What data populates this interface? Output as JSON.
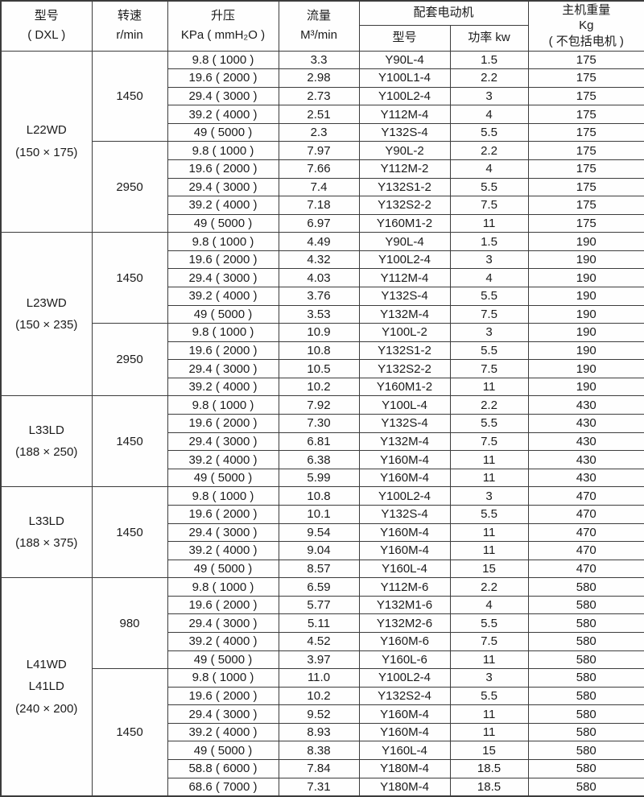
{
  "colors": {
    "border": "#3c3c3c",
    "text": "#1b1b1b",
    "table_bg": "#fefefe"
  },
  "table": {
    "headers": {
      "model_line1": "型号",
      "model_line2": "( DXL )",
      "speed_line1": "转速",
      "speed_line2": "r/min",
      "pressure_line1": "升压",
      "pressure_line2": "KPa ( mmH₂O )",
      "flow_line1": "流量",
      "flow_line2": "M³/min",
      "motor_group": "配套电动机",
      "motor_model": "型号",
      "motor_power": "功率 kw",
      "weight_line1": "主机重量",
      "weight_line2": "Kg",
      "weight_line3": "( 不包括电机 )"
    },
    "column_cell_names": [
      "pressure-cell",
      "flow-cell",
      "motor-model-cell",
      "motor-power-cell",
      "weight-cell"
    ],
    "groups": [
      {
        "model_lines": [
          "L22WD",
          "(150 × 175)"
        ],
        "speed_groups": [
          {
            "speed": "1450",
            "rows": [
              [
                "9.8 ( 1000 )",
                "3.3",
                "Y90L-4",
                "1.5",
                "175"
              ],
              [
                "19.6 ( 2000 )",
                "2.98",
                "Y100L1-4",
                "2.2",
                "175"
              ],
              [
                "29.4 ( 3000 )",
                "2.73",
                "Y100L2-4",
                "3",
                "175"
              ],
              [
                "39.2 ( 4000 )",
                "2.51",
                "Y112M-4",
                "4",
                "175"
              ],
              [
                "49 ( 5000 )",
                "2.3",
                "Y132S-4",
                "5.5",
                "175"
              ]
            ]
          },
          {
            "speed": "2950",
            "rows": [
              [
                "9.8 ( 1000 )",
                "7.97",
                "Y90L-2",
                "2.2",
                "175"
              ],
              [
                "19.6 ( 2000 )",
                "7.66",
                "Y112M-2",
                "4",
                "175"
              ],
              [
                "29.4 ( 3000 )",
                "7.4",
                "Y132S1-2",
                "5.5",
                "175"
              ],
              [
                "39.2 ( 4000 )",
                "7.18",
                "Y132S2-2",
                "7.5",
                "175"
              ],
              [
                "49 ( 5000 )",
                "6.97",
                "Y160M1-2",
                "11",
                "175"
              ]
            ]
          }
        ]
      },
      {
        "model_lines": [
          "L23WD",
          "(150 × 235)"
        ],
        "speed_groups": [
          {
            "speed": "1450",
            "rows": [
              [
                "9.8 ( 1000 )",
                "4.49",
                "Y90L-4",
                "1.5",
                "190"
              ],
              [
                "19.6 ( 2000 )",
                "4.32",
                "Y100L2-4",
                "3",
                "190"
              ],
              [
                "29.4 ( 3000 )",
                "4.03",
                "Y112M-4",
                "4",
                "190"
              ],
              [
                "39.2 ( 4000 )",
                "3.76",
                "Y132S-4",
                "5.5",
                "190"
              ],
              [
                "49 ( 5000 )",
                "3.53",
                "Y132M-4",
                "7.5",
                "190"
              ]
            ]
          },
          {
            "speed": "2950",
            "rows": [
              [
                "9.8 ( 1000 )",
                "10.9",
                "Y100L-2",
                "3",
                "190"
              ],
              [
                "19.6 ( 2000 )",
                "10.8",
                "Y132S1-2",
                "5.5",
                "190"
              ],
              [
                "29.4 ( 3000 )",
                "10.5",
                "Y132S2-2",
                "7.5",
                "190"
              ],
              [
                "39.2 ( 4000 )",
                "10.2",
                "Y160M1-2",
                "11",
                "190"
              ]
            ]
          }
        ]
      },
      {
        "model_lines": [
          "L33LD",
          "(188 × 250)"
        ],
        "speed_groups": [
          {
            "speed": "1450",
            "rows": [
              [
                "9.8 ( 1000 )",
                "7.92",
                "Y100L-4",
                "2.2",
                "430"
              ],
              [
                "19.6 ( 2000 )",
                "7.30",
                "Y132S-4",
                "5.5",
                "430"
              ],
              [
                "29.4 ( 3000 )",
                "6.81",
                "Y132M-4",
                "7.5",
                "430"
              ],
              [
                "39.2 ( 4000 )",
                "6.38",
                "Y160M-4",
                "11",
                "430"
              ],
              [
                "49 ( 5000 )",
                "5.99",
                "Y160M-4",
                "11",
                "430"
              ]
            ]
          }
        ]
      },
      {
        "model_lines": [
          "L33LD",
          "(188 × 375)"
        ],
        "speed_groups": [
          {
            "speed": "1450",
            "rows": [
              [
                "9.8 ( 1000 )",
                "10.8",
                "Y100L2-4",
                "3",
                "470"
              ],
              [
                "19.6 ( 2000 )",
                "10.1",
                "Y132S-4",
                "5.5",
                "470"
              ],
              [
                "29.4 ( 3000 )",
                "9.54",
                "Y160M-4",
                "11",
                "470"
              ],
              [
                "39.2 ( 4000 )",
                "9.04",
                "Y160M-4",
                "11",
                "470"
              ],
              [
                "49 ( 5000 )",
                "8.57",
                "Y160L-4",
                "15",
                "470"
              ]
            ]
          }
        ]
      },
      {
        "model_lines": [
          "L41WD",
          "L41LD",
          "(240 × 200)"
        ],
        "speed_groups": [
          {
            "speed": "980",
            "rows": [
              [
                "9.8 ( 1000 )",
                "6.59",
                "Y112M-6",
                "2.2",
                "580"
              ],
              [
                "19.6 ( 2000 )",
                "5.77",
                "Y132M1-6",
                "4",
                "580"
              ],
              [
                "29.4 ( 3000 )",
                "5.11",
                "Y132M2-6",
                "5.5",
                "580"
              ],
              [
                "39.2 ( 4000 )",
                "4.52",
                "Y160M-6",
                "7.5",
                "580"
              ],
              [
                "49 ( 5000 )",
                "3.97",
                "Y160L-6",
                "11",
                "580"
              ]
            ]
          },
          {
            "speed": "1450",
            "rows": [
              [
                "9.8 ( 1000 )",
                "11.0",
                "Y100L2-4",
                "3",
                "580"
              ],
              [
                "19.6 ( 2000 )",
                "10.2",
                "Y132S2-4",
                "5.5",
                "580"
              ],
              [
                "29.4 ( 3000 )",
                "9.52",
                "Y160M-4",
                "11",
                "580"
              ],
              [
                "39.2 ( 4000 )",
                "8.93",
                "Y160M-4",
                "11",
                "580"
              ],
              [
                "49 ( 5000 )",
                "8.38",
                "Y160L-4",
                "15",
                "580"
              ],
              [
                "58.8 ( 6000 )",
                "7.84",
                "Y180M-4",
                "18.5",
                "580"
              ],
              [
                "68.6 ( 7000 )",
                "7.31",
                "Y180M-4",
                "18.5",
                "580"
              ]
            ]
          }
        ]
      }
    ]
  }
}
